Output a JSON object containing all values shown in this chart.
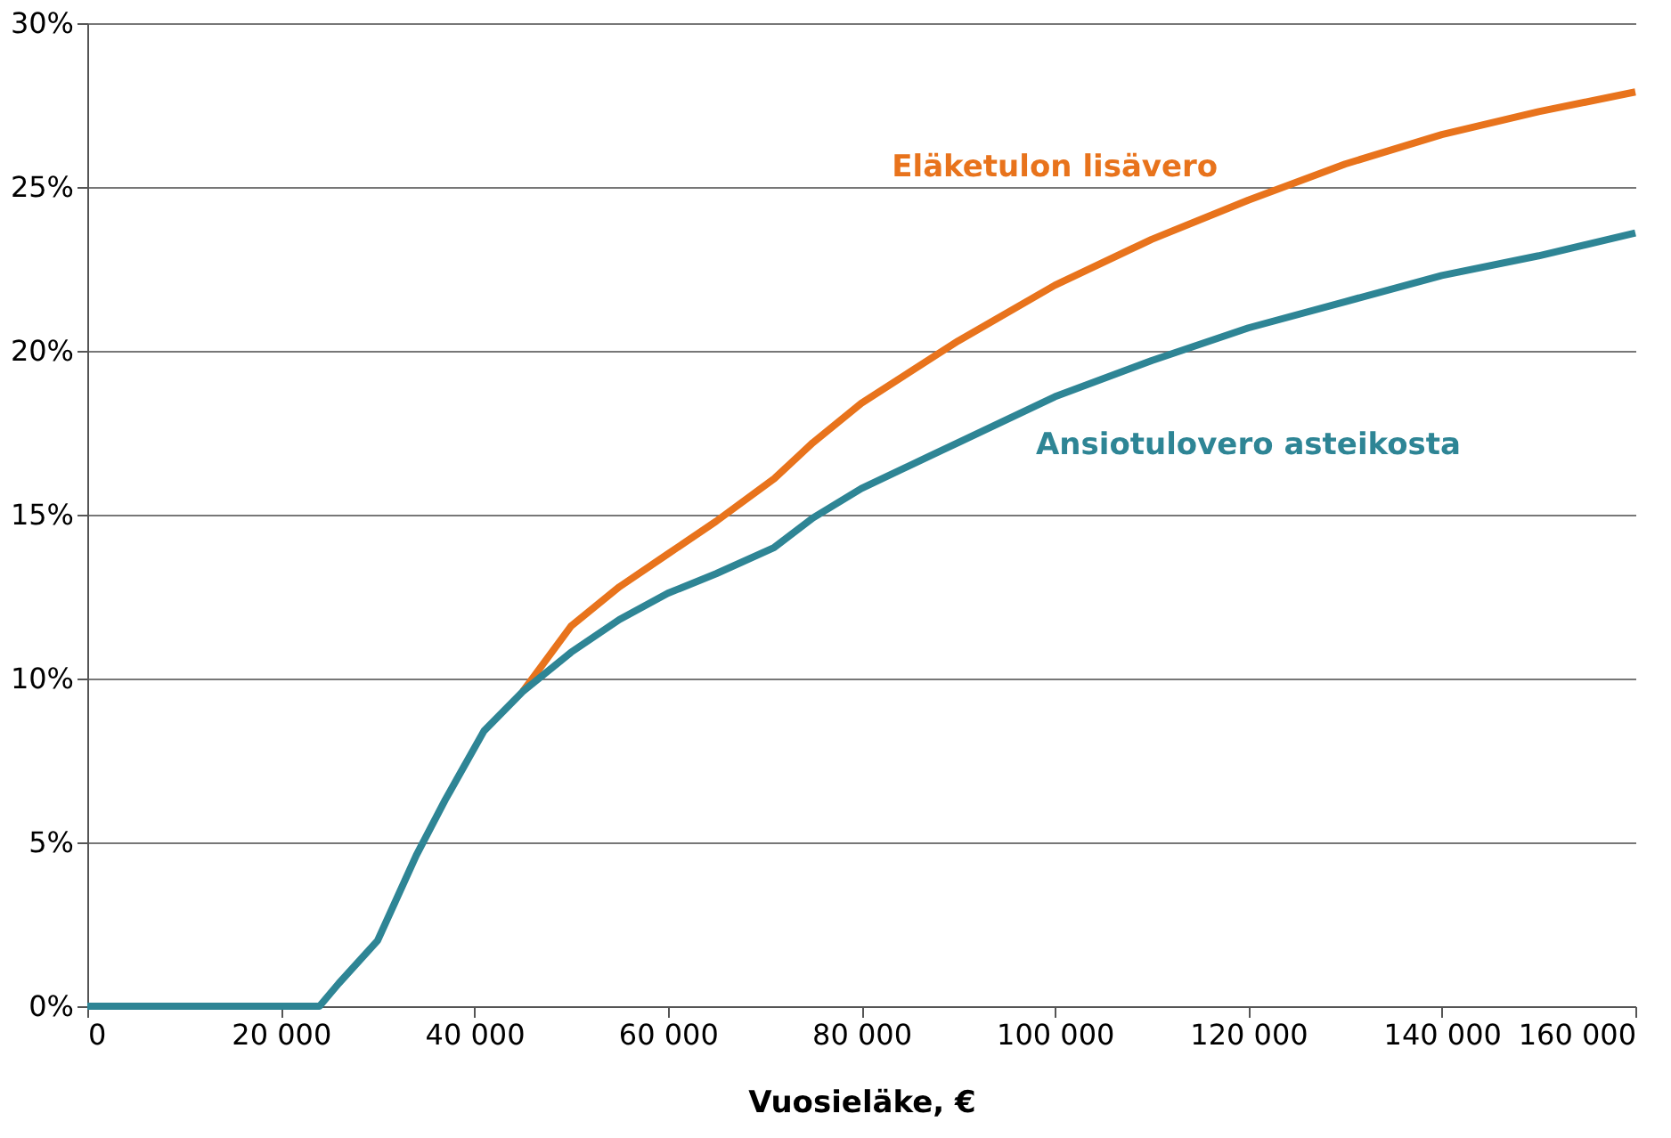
{
  "chart_data": {
    "type": "line",
    "xlabel": "Vuosieläke, €",
    "x": [
      0,
      24000,
      26000,
      30000,
      34000,
      37000,
      41000,
      45000,
      50000,
      55000,
      60000,
      65000,
      71000,
      75000,
      80000,
      90000,
      100000,
      110000,
      120000,
      130000,
      140000,
      150000,
      160000
    ],
    "series": [
      {
        "name": "Eläketulon lisävero",
        "color": "#e8731c",
        "values": [
          null,
          null,
          null,
          null,
          null,
          null,
          null,
          9.6,
          11.6,
          12.8,
          13.8,
          14.8,
          16.1,
          17.2,
          18.4,
          20.3,
          22.0,
          23.4,
          24.6,
          25.7,
          26.6,
          27.3,
          27.9
        ]
      },
      {
        "name": "Ansiotulovero asteikosta",
        "color": "#2e8595",
        "values": [
          0,
          0,
          0.7,
          2.0,
          4.6,
          6.3,
          8.4,
          9.6,
          10.8,
          11.8,
          12.6,
          13.2,
          14.0,
          14.9,
          15.8,
          17.2,
          18.6,
          19.7,
          20.7,
          21.5,
          22.3,
          22.9,
          23.6
        ]
      }
    ],
    "xlim": [
      0,
      160000
    ],
    "xticks": [
      {
        "value": 0,
        "label": "0"
      },
      {
        "value": 20000,
        "label": "20 000"
      },
      {
        "value": 40000,
        "label": "40 000"
      },
      {
        "value": 60000,
        "label": "60 000"
      },
      {
        "value": 80000,
        "label": "80 000"
      },
      {
        "value": 100000,
        "label": "100 000"
      },
      {
        "value": 120000,
        "label": "120 000"
      },
      {
        "value": 140000,
        "label": "140 000"
      },
      {
        "value": 160000,
        "label": "160 000"
      }
    ],
    "ylim": [
      0,
      30
    ],
    "yticks": [
      {
        "value": 0,
        "label": "0%"
      },
      {
        "value": 5,
        "label": "5%"
      },
      {
        "value": 10,
        "label": "10%"
      },
      {
        "value": 15,
        "label": "15%"
      },
      {
        "value": 20,
        "label": "20%"
      },
      {
        "value": 25,
        "label": "25%"
      },
      {
        "value": 30,
        "label": "30%"
      }
    ],
    "grid": "y",
    "legend": false,
    "marker": "none",
    "line_style": "solid"
  }
}
